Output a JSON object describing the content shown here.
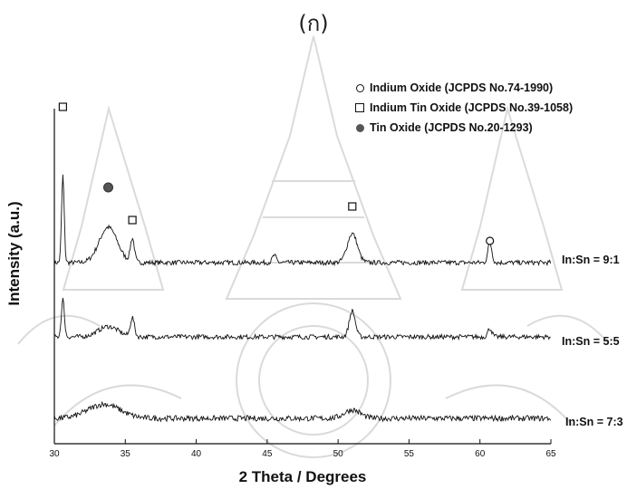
{
  "figure": {
    "sublabel": "(ก)"
  },
  "legend": [
    {
      "marker": "circle",
      "label": "Indium Oxide (JCPDS No.74-1990)"
    },
    {
      "marker": "square",
      "label": "Indium Tin Oxide (JCPDS No.39-1058)"
    },
    {
      "marker": "filled-circle",
      "label": "Tin Oxide (JCPDS No.20-1293)"
    }
  ],
  "chart_data": {
    "type": "line",
    "xlabel": "2 Theta / Degrees",
    "ylabel": "Intensity (a.u.)",
    "xlim": [
      30,
      65
    ],
    "x_ticks": [
      30,
      35,
      40,
      45,
      50,
      55,
      60,
      65
    ],
    "y_ticks_shown": false,
    "grid": false,
    "legend_position": "top-right",
    "line_color": "#111111",
    "series": [
      {
        "name": "In:Sn = 9:1",
        "baseline": 0.66,
        "noise": 0.05,
        "peaks": [
          {
            "x": 30.6,
            "height": 1.85,
            "width": 0.13
          },
          {
            "x": 33.8,
            "height": 0.75,
            "width": 0.9
          },
          {
            "x": 35.5,
            "height": 0.5,
            "width": 0.2
          },
          {
            "x": 45.5,
            "height": 0.15,
            "width": 0.2
          },
          {
            "x": 51.0,
            "height": 0.62,
            "width": 0.5
          },
          {
            "x": 60.7,
            "height": 0.42,
            "width": 0.2
          }
        ]
      },
      {
        "name": "In:Sn = 5:5",
        "baseline": 0.34,
        "noise": 0.05,
        "peaks": [
          {
            "x": 30.6,
            "height": 0.8,
            "width": 0.15
          },
          {
            "x": 33.8,
            "height": 0.22,
            "width": 1.0
          },
          {
            "x": 35.5,
            "height": 0.4,
            "width": 0.2
          },
          {
            "x": 51.0,
            "height": 0.55,
            "width": 0.3
          },
          {
            "x": 60.7,
            "height": 0.18,
            "width": 0.2
          }
        ]
      },
      {
        "name": "In:Sn = 7:3",
        "baseline": 0.0,
        "noise": 0.06,
        "peaks": [
          {
            "x": 33.5,
            "height": 0.3,
            "width": 1.6
          },
          {
            "x": 51.0,
            "height": 0.18,
            "width": 0.8
          }
        ]
      }
    ],
    "peak_markers": [
      {
        "x": 30.6,
        "marker": "square",
        "phase": "Indium Tin Oxide"
      },
      {
        "x": 33.8,
        "marker": "filled-circle",
        "phase": "Tin Oxide"
      },
      {
        "x": 35.5,
        "marker": "square",
        "phase": "Indium Tin Oxide"
      },
      {
        "x": 51.0,
        "marker": "square",
        "phase": "Indium Tin Oxide"
      },
      {
        "x": 60.7,
        "marker": "circle",
        "phase": "Indium Oxide"
      }
    ]
  }
}
